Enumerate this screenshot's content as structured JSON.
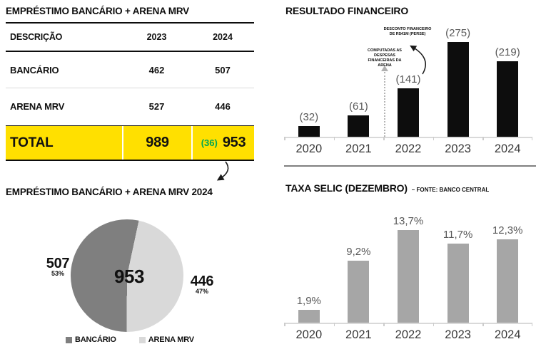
{
  "colors": {
    "highlight_yellow": "#FFE000",
    "delta_green": "#00A651",
    "pie_dark": "#7F7F7F",
    "pie_light": "#D9D9D9",
    "resultado_bar": "#0d0d0d",
    "selic_bar": "#A6A6A6",
    "value_label_gray": "#595959",
    "axis_gray": "#D9D9D9",
    "divider_gray": "#808080"
  },
  "loan_table": {
    "title": "EMPRÉSTIMO BANCÁRIO + ARENA MRV",
    "columns": [
      "DESCRIÇÃO",
      "2023",
      "2024"
    ],
    "rows": [
      {
        "label": "BANCÁRIO",
        "y2023": "462",
        "y2024": "507"
      },
      {
        "label": "ARENA MRV",
        "y2023": "527",
        "y2024": "446"
      }
    ],
    "total": {
      "label": "TOTAL",
      "y2023": "989",
      "delta": "(36)",
      "y2024": "953"
    }
  },
  "chart_data": [
    {
      "id": "resultado",
      "type": "bar",
      "title": "RESULTADO FINANCEIRO",
      "categories": [
        "2020",
        "2021",
        "2022",
        "2023",
        "2024"
      ],
      "values": [
        -32,
        -61,
        -141,
        -275,
        -219
      ],
      "labels": [
        "(32)",
        "(61)",
        "(141)",
        "(275)",
        "(219)"
      ],
      "bar_color": "#0d0d0d",
      "ylim": [
        0,
        275
      ],
      "grid": false,
      "annotations": [
        "COMPUTADAS AS DESPESAS FINANCEIRAS DA ARENA",
        "DESCONTO FINANCEIRO DE R$41M (PERSE)"
      ]
    },
    {
      "id": "selic",
      "type": "bar",
      "title": "TAXA SELIC (DEZEMBRO)",
      "subtitle": "– FONTE: BANCO CENTRAL",
      "categories": [
        "2020",
        "2021",
        "2022",
        "2023",
        "2024"
      ],
      "values": [
        1.9,
        9.2,
        13.7,
        11.7,
        12.3
      ],
      "labels": [
        "1,9%",
        "9,2%",
        "13,7%",
        "11,7%",
        "12,3%"
      ],
      "bar_color": "#A6A6A6",
      "ylim": [
        0,
        13.7
      ],
      "grid": false
    },
    {
      "id": "pie",
      "type": "pie",
      "title": "EMPRÉSTIMO BANCÁRIO + ARENA MRV 2024",
      "center_label": "953",
      "slices": [
        {
          "label": "BANCÁRIO",
          "value": 507,
          "value_label": "507",
          "pct_label": "53%",
          "color": "#7F7F7F"
        },
        {
          "label": "ARENA MRV",
          "value": 446,
          "value_label": "446",
          "pct_label": "47%",
          "color": "#D9D9D9"
        }
      ],
      "legend_position": "bottom"
    }
  ]
}
